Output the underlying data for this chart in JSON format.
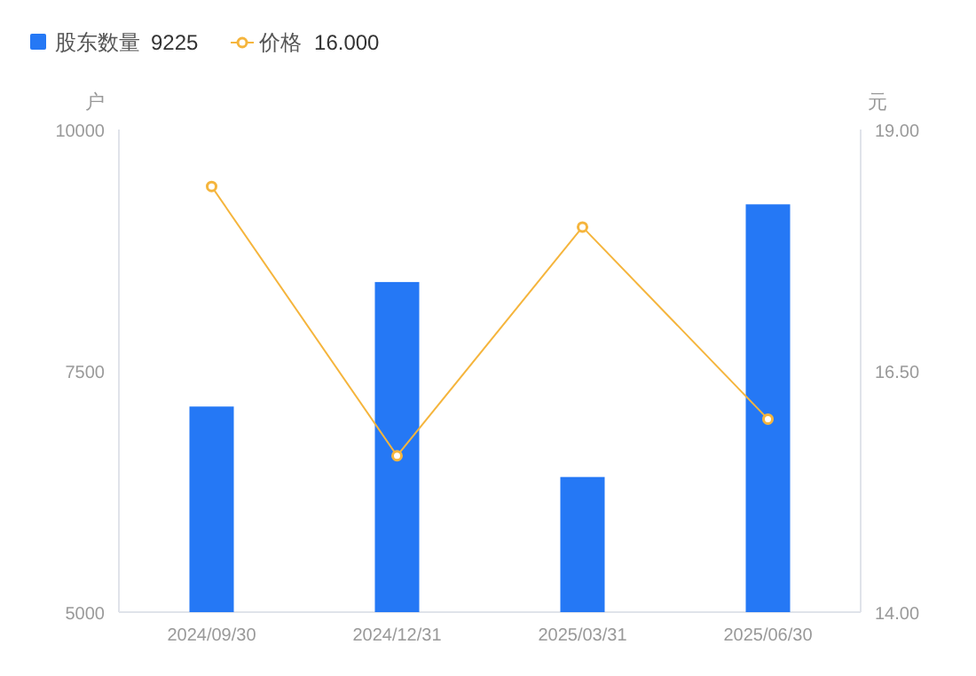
{
  "chart_data": {
    "type": "bar",
    "categories": [
      "2024/09/30",
      "2024/12/31",
      "2025/03/31",
      "2025/06/30"
    ],
    "ylabel": "户",
    "y2label": "元",
    "ylim": [
      5000,
      10000
    ],
    "yticks": [
      5000,
      7500,
      10000
    ],
    "y2lim": [
      14,
      19
    ],
    "y2ticks": [
      {
        "value": 14,
        "label": "14.00"
      },
      {
        "value": 16.5,
        "label": "16.50"
      },
      {
        "value": 19,
        "label": "19.00"
      }
    ],
    "series": [
      {
        "name": "股东数量",
        "color": "#2578f5",
        "values": [
          7130,
          8420,
          6400,
          9225
        ]
      },
      {
        "name": "价格",
        "type": "line",
        "axis": "y2",
        "color": "#f5b53d",
        "marker": "circle",
        "values": [
          18.41,
          15.62,
          17.99,
          16.0
        ]
      }
    ],
    "annotations": [
      "9225",
      "16.000"
    ],
    "legend": "top left",
    "grid": false
  }
}
